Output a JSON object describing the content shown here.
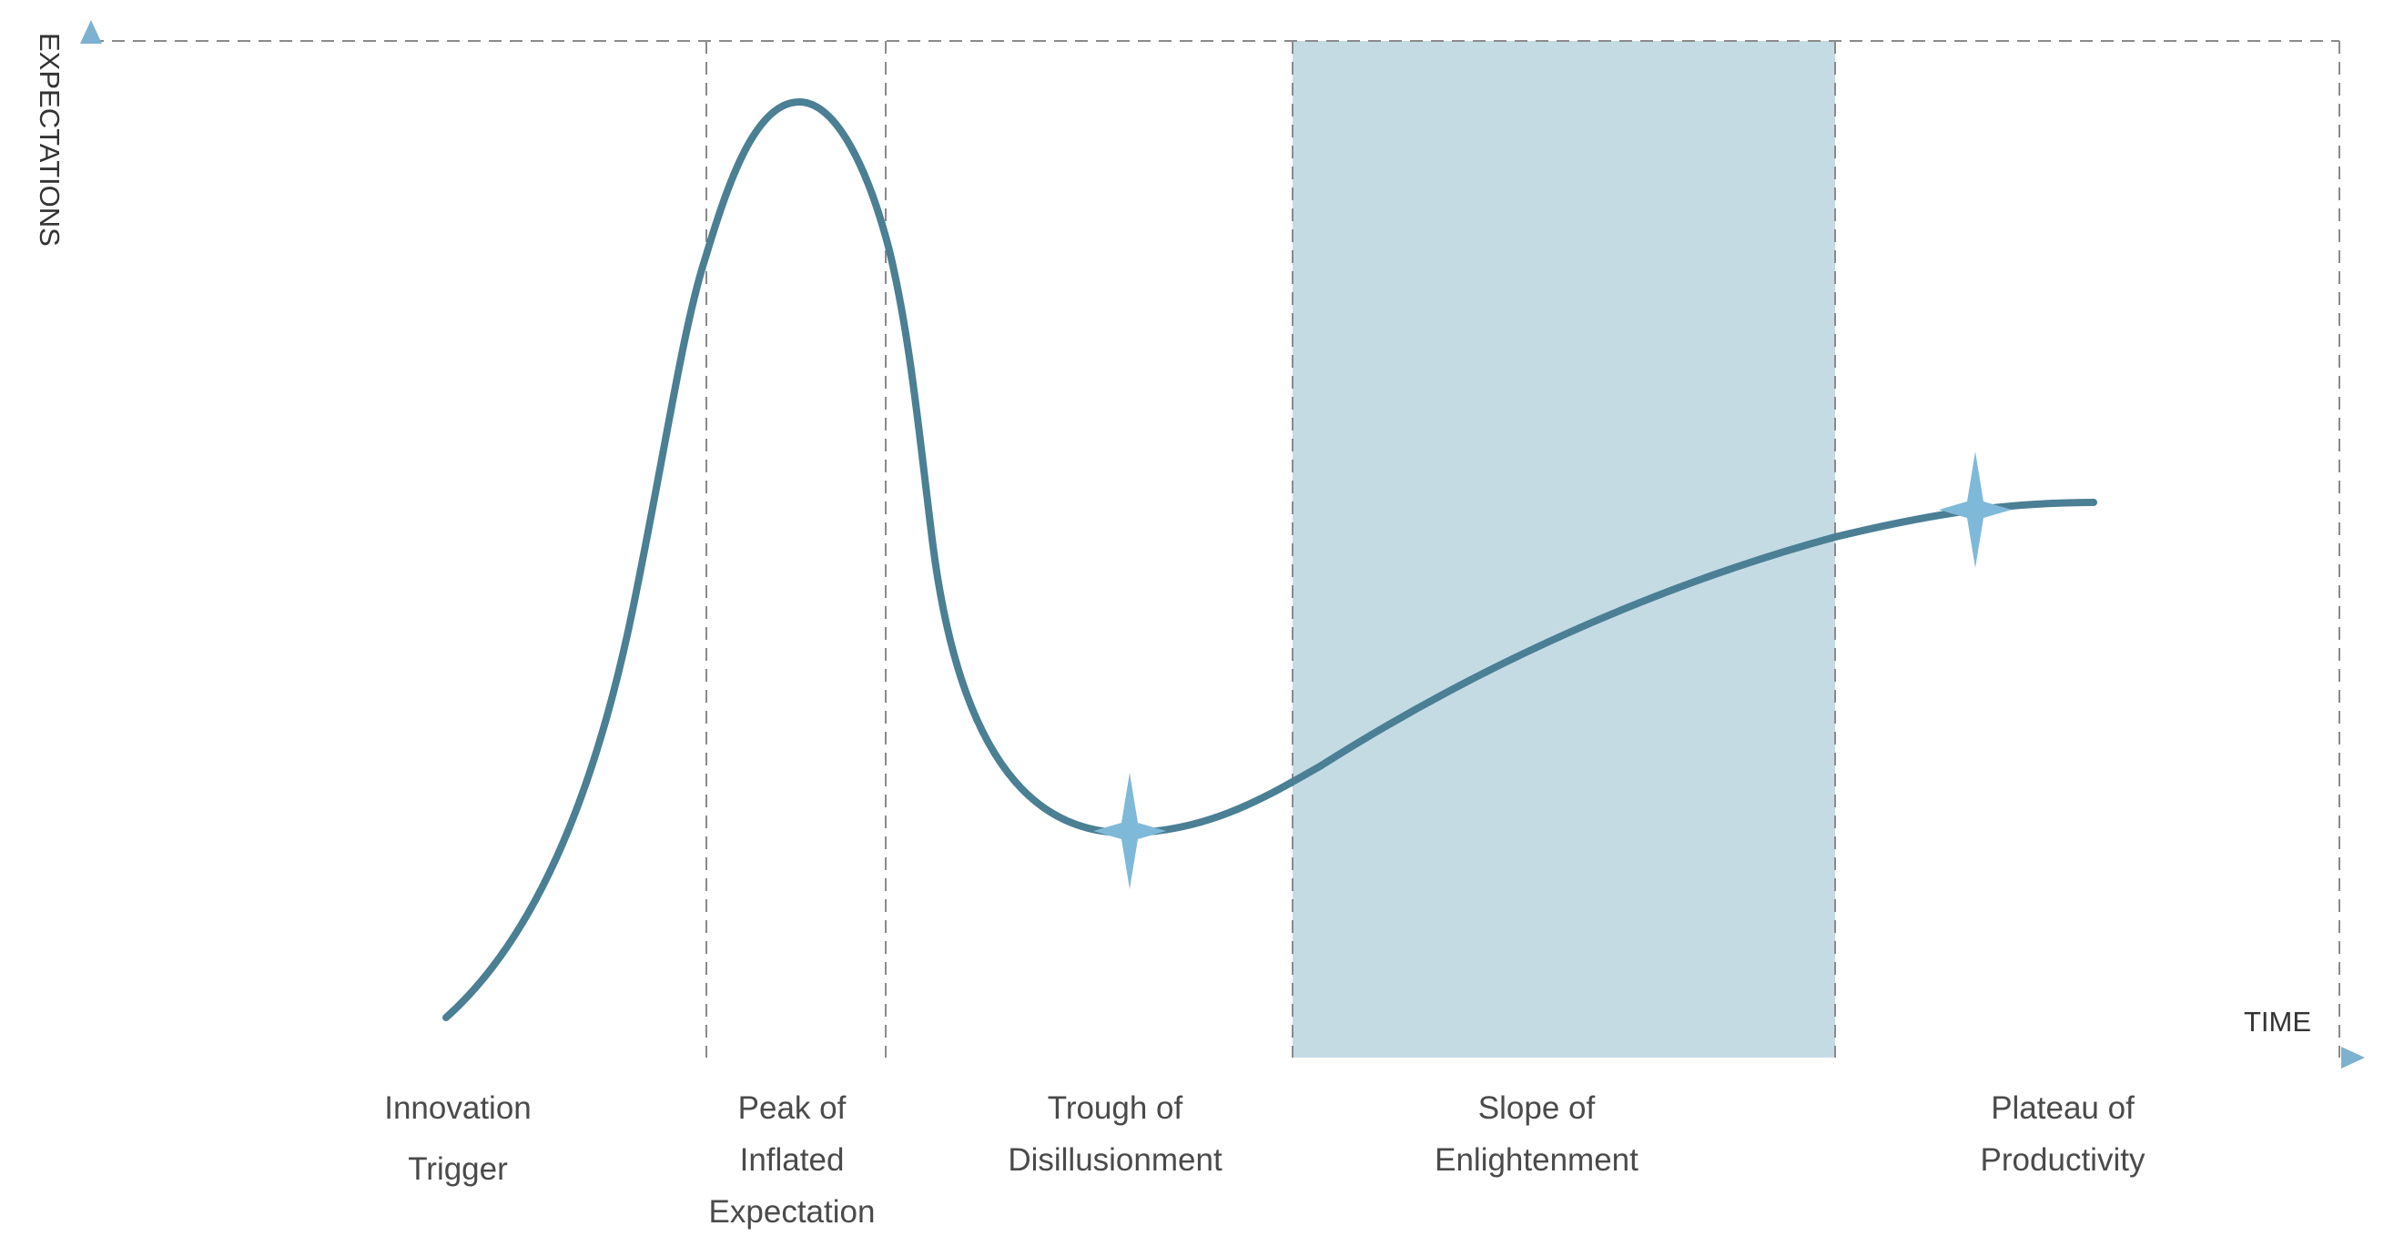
{
  "axes": {
    "y_label": "EXPECTATIONS",
    "x_label": "TIME"
  },
  "phases": [
    {
      "id": "innovation-trigger",
      "lines": [
        "Innovation",
        "Trigger"
      ]
    },
    {
      "id": "peak",
      "lines": [
        "Peak of",
        "Inflated",
        "Expectation"
      ]
    },
    {
      "id": "trough",
      "lines": [
        "Trough of",
        "Disillusionment"
      ]
    },
    {
      "id": "slope",
      "lines": [
        "Slope of",
        "Enlightenment"
      ]
    },
    {
      "id": "plateau",
      "lines": [
        "Plateau of",
        "Productivity"
      ]
    }
  ],
  "colors": {
    "curve": "#4a7f94",
    "axis_start": "#4a7d92",
    "axis_end": "#7cb2cf",
    "highlight_band": "#c5dbe4",
    "star": "#7fb9d9",
    "dashed": "#8a8a8a"
  }
}
